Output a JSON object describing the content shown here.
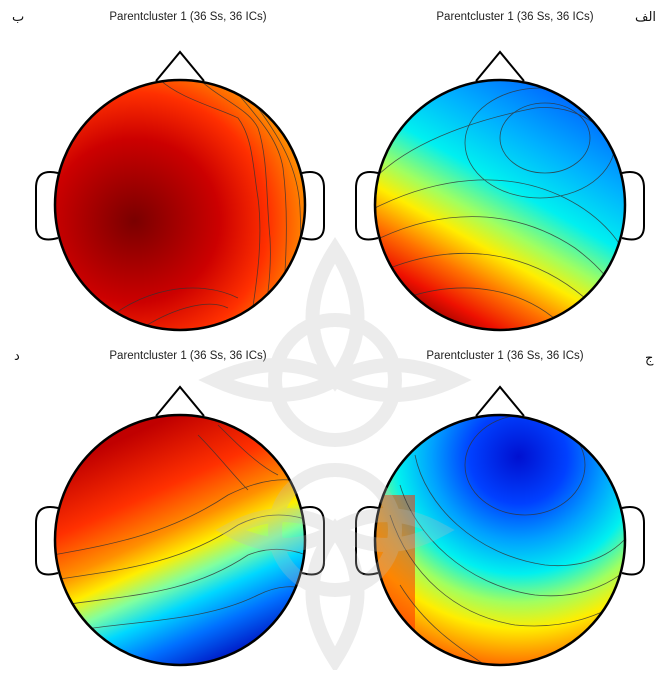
{
  "panels": [
    {
      "id": "alef",
      "letter": "الف",
      "title": "Parentcluster 1 (36 Ss, 36 ICs)"
    },
    {
      "id": "be",
      "letter": "ب",
      "title": "Parentcluster 1 (36 Ss, 36 ICs)"
    },
    {
      "id": "jim",
      "letter": "ج",
      "title": "Parentcluster 1 (36 Ss, 36 ICs)"
    },
    {
      "id": "dal",
      "letter": "د",
      "title": "Parentcluster 1 (36 Ss, 36 ICs)"
    }
  ],
  "maps": {
    "alef": {
      "min_region": "frontal-right",
      "max_region": "posterior-left"
    },
    "be": {
      "min_region": "right-temporal",
      "max_region": "central-left"
    },
    "jim": {
      "min_region": "frontal-center",
      "max_region": "right-posterior"
    },
    "dal": {
      "min_region": "posterior-right",
      "max_region": "frontal-left"
    }
  },
  "colormap": [
    "#00008f",
    "#0040ff",
    "#00c8ff",
    "#80ffb0",
    "#ffff00",
    "#ff8000",
    "#ff0000",
    "#7a0000"
  ]
}
